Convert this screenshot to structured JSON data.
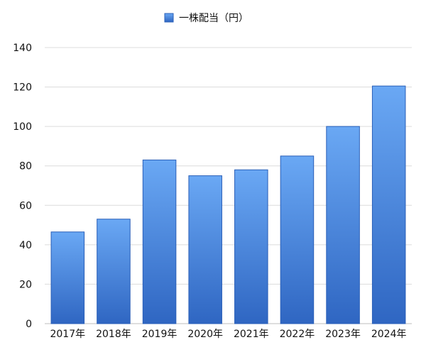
{
  "chart_data": {
    "type": "bar",
    "categories": [
      "2017年",
      "2018年",
      "2019年",
      "2020年",
      "2021年",
      "2022年",
      "2023年",
      "2024年"
    ],
    "series": [
      {
        "name": "一株配当（円）",
        "values": [
          46.5,
          53,
          83,
          75,
          78,
          85,
          100,
          120.5
        ]
      }
    ],
    "ylim": [
      0,
      140
    ],
    "yticks": [
      0,
      20,
      40,
      60,
      80,
      100,
      120,
      140
    ],
    "grid": true,
    "legend_position": "top-center",
    "colors": {
      "bar_top": "#6aa8f4",
      "bar_bottom": "#2f66c2",
      "bar_edge": "#2a5fb8",
      "grid": "#dcdcdc"
    }
  }
}
